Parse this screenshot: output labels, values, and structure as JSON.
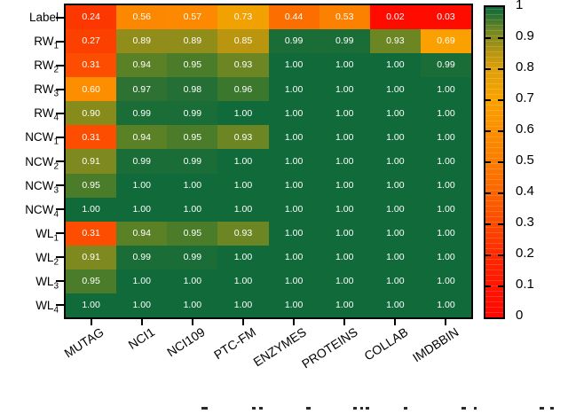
{
  "chart_data": {
    "type": "heatmap",
    "title": "",
    "xlabel": "",
    "ylabel": "",
    "rows": [
      {
        "label": "Label",
        "sub": ""
      },
      {
        "label": "RW",
        "sub": "1"
      },
      {
        "label": "RW",
        "sub": "2"
      },
      {
        "label": "RW",
        "sub": "3"
      },
      {
        "label": "RW",
        "sub": "4"
      },
      {
        "label": "NCW",
        "sub": "1"
      },
      {
        "label": "NCW",
        "sub": "2"
      },
      {
        "label": "NCW",
        "sub": "3"
      },
      {
        "label": "NCW",
        "sub": "4"
      },
      {
        "label": "WL",
        "sub": "1"
      },
      {
        "label": "WL",
        "sub": "2"
      },
      {
        "label": "WL",
        "sub": "3"
      },
      {
        "label": "WL",
        "sub": "4"
      }
    ],
    "columns": [
      "MUTAG",
      "NCI1",
      "NCI109",
      "PTC-FM",
      "ENZYMES",
      "PROTEINS",
      "COLLAB",
      "IMDBBIN"
    ],
    "values": [
      [
        0.24,
        0.56,
        0.57,
        0.73,
        0.44,
        0.53,
        0.02,
        0.03
      ],
      [
        0.27,
        0.89,
        0.89,
        0.85,
        0.99,
        0.99,
        0.93,
        0.69
      ],
      [
        0.31,
        0.94,
        0.95,
        0.93,
        1.0,
        1.0,
        1.0,
        0.99
      ],
      [
        0.6,
        0.97,
        0.98,
        0.96,
        1.0,
        1.0,
        1.0,
        1.0
      ],
      [
        0.9,
        0.99,
        0.99,
        1.0,
        1.0,
        1.0,
        1.0,
        1.0
      ],
      [
        0.31,
        0.94,
        0.95,
        0.93,
        1.0,
        1.0,
        1.0,
        1.0
      ],
      [
        0.91,
        0.99,
        0.99,
        1.0,
        1.0,
        1.0,
        1.0,
        1.0
      ],
      [
        0.95,
        1.0,
        1.0,
        1.0,
        1.0,
        1.0,
        1.0,
        1.0
      ],
      [
        1.0,
        1.0,
        1.0,
        1.0,
        1.0,
        1.0,
        1.0,
        1.0
      ],
      [
        0.31,
        0.94,
        0.95,
        0.93,
        1.0,
        1.0,
        1.0,
        1.0
      ],
      [
        0.91,
        0.99,
        0.99,
        1.0,
        1.0,
        1.0,
        1.0,
        1.0
      ],
      [
        0.95,
        1.0,
        1.0,
        1.0,
        1.0,
        1.0,
        1.0,
        1.0
      ],
      [
        1.0,
        1.0,
        1.0,
        1.0,
        1.0,
        1.0,
        1.0,
        1.0
      ]
    ],
    "cell_text_color": "#ffffff",
    "grid": false,
    "colorbar": {
      "min": 0,
      "max": 1,
      "position": "right",
      "tick_values": [
        1,
        0.9,
        0.8,
        0.7,
        0.6,
        0.5,
        0.4,
        0.3,
        0.2,
        0.1,
        0
      ],
      "tick_labels": [
        "1",
        "0.9",
        "0.8",
        "0.7",
        "0.6",
        "0.5",
        "0.4",
        "0.3",
        "0.2",
        "0.1",
        "0"
      ]
    },
    "colormap": [
      {
        "pos": 0.0,
        "color": "#ff0800"
      },
      {
        "pos": 0.1,
        "color": "#ff1600"
      },
      {
        "pos": 0.2,
        "color": "#fd2a00"
      },
      {
        "pos": 0.3,
        "color": "#fc4a00"
      },
      {
        "pos": 0.4,
        "color": "#fc6400"
      },
      {
        "pos": 0.5,
        "color": "#fc7c00"
      },
      {
        "pos": 0.6,
        "color": "#fc8e00"
      },
      {
        "pos": 0.7,
        "color": "#faa200"
      },
      {
        "pos": 0.8,
        "color": "#dea00a"
      },
      {
        "pos": 0.85,
        "color": "#ba9610"
      },
      {
        "pos": 0.9,
        "color": "#878b1c"
      },
      {
        "pos": 0.93,
        "color": "#6c8624"
      },
      {
        "pos": 0.95,
        "color": "#4a7c29"
      },
      {
        "pos": 0.97,
        "color": "#2e7233"
      },
      {
        "pos": 1.0,
        "color": "#106a39"
      }
    ]
  },
  "caption_fragments": {
    "color": "#2b2b2b",
    "marks": [
      [
        227,
        7
      ],
      [
        284,
        4
      ],
      [
        292,
        4
      ],
      [
        345,
        5
      ],
      [
        398,
        4
      ],
      [
        406,
        3
      ],
      [
        412,
        4
      ],
      [
        455,
        4
      ],
      [
        520,
        5
      ],
      [
        534,
        3
      ],
      [
        608,
        5
      ],
      [
        620,
        4
      ]
    ]
  }
}
